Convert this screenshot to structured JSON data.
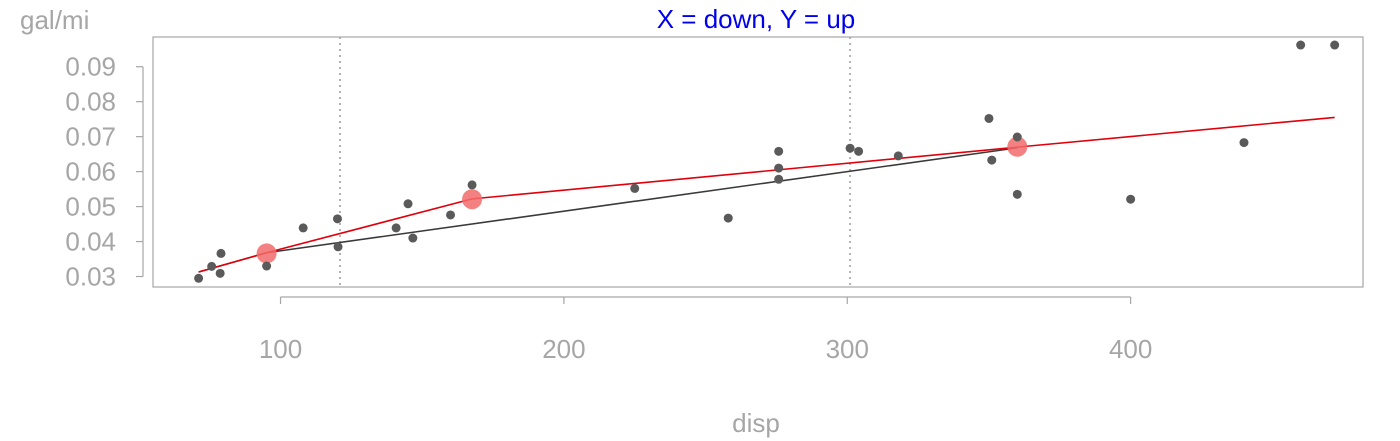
{
  "chart_data": {
    "type": "scatter",
    "title": "X = down, Y = up",
    "ylabel": "gal/mi",
    "xlabel": "disp",
    "xlim": [
      55,
      482
    ],
    "ylim": [
      0.027,
      0.0985
    ],
    "x_ticks": [
      100,
      200,
      300,
      400
    ],
    "y_ticks": [
      0.03,
      0.04,
      0.05,
      0.06,
      0.07,
      0.08,
      0.09
    ],
    "y_tick_labels": [
      "0.03",
      "0.04",
      "0.05",
      "0.06",
      "0.07",
      "0.08",
      "0.09"
    ],
    "vlines": [
      121,
      301
    ],
    "points": [
      {
        "x": 71.1,
        "y": 0.0295
      },
      {
        "x": 75.7,
        "y": 0.0329
      },
      {
        "x": 78.7,
        "y": 0.0309
      },
      {
        "x": 79.0,
        "y": 0.0366
      },
      {
        "x": 95.1,
        "y": 0.033
      },
      {
        "x": 108.0,
        "y": 0.0439
      },
      {
        "x": 120.1,
        "y": 0.0465
      },
      {
        "x": 120.3,
        "y": 0.0385
      },
      {
        "x": 140.8,
        "y": 0.0439
      },
      {
        "x": 145.0,
        "y": 0.0508
      },
      {
        "x": 146.7,
        "y": 0.041
      },
      {
        "x": 160.0,
        "y": 0.0476
      },
      {
        "x": 167.6,
        "y": 0.0562
      },
      {
        "x": 225.0,
        "y": 0.0552
      },
      {
        "x": 258.0,
        "y": 0.0467
      },
      {
        "x": 275.8,
        "y": 0.061
      },
      {
        "x": 275.8,
        "y": 0.0578
      },
      {
        "x": 275.8,
        "y": 0.0658
      },
      {
        "x": 301.0,
        "y": 0.0667
      },
      {
        "x": 304.0,
        "y": 0.0658
      },
      {
        "x": 318.0,
        "y": 0.0645
      },
      {
        "x": 350.0,
        "y": 0.0752
      },
      {
        "x": 351.0,
        "y": 0.0633
      },
      {
        "x": 360.0,
        "y": 0.0699
      },
      {
        "x": 360.0,
        "y": 0.0535
      },
      {
        "x": 400.0,
        "y": 0.0521
      },
      {
        "x": 440.0,
        "y": 0.0683
      },
      {
        "x": 460.0,
        "y": 0.0962
      },
      {
        "x": 472.0,
        "y": 0.0962
      }
    ],
    "series": [
      {
        "name": "lower-segment-line",
        "color": "#3a3a3a",
        "x": [
          71.1,
          95.1,
          360.0
        ],
        "y": [
          0.0313,
          0.0368,
          0.0668
        ]
      },
      {
        "name": "red-fit-line",
        "color": "#e0000b",
        "x": [
          71.1,
          95.1,
          167.6,
          360.0,
          472.0
        ],
        "y": [
          0.0313,
          0.0368,
          0.0522,
          0.067,
          0.0755
        ]
      }
    ],
    "highlight_points": [
      {
        "x": 95.1,
        "y": 0.0366
      },
      {
        "x": 167.6,
        "y": 0.0521
      },
      {
        "x": 360.0,
        "y": 0.0671
      }
    ],
    "colors": {
      "point": "#5a5a5a",
      "highlight": "#f26b6b",
      "title": "#0000ee",
      "axis": "#a6a6a6",
      "vline": "#b3b3b3"
    }
  }
}
